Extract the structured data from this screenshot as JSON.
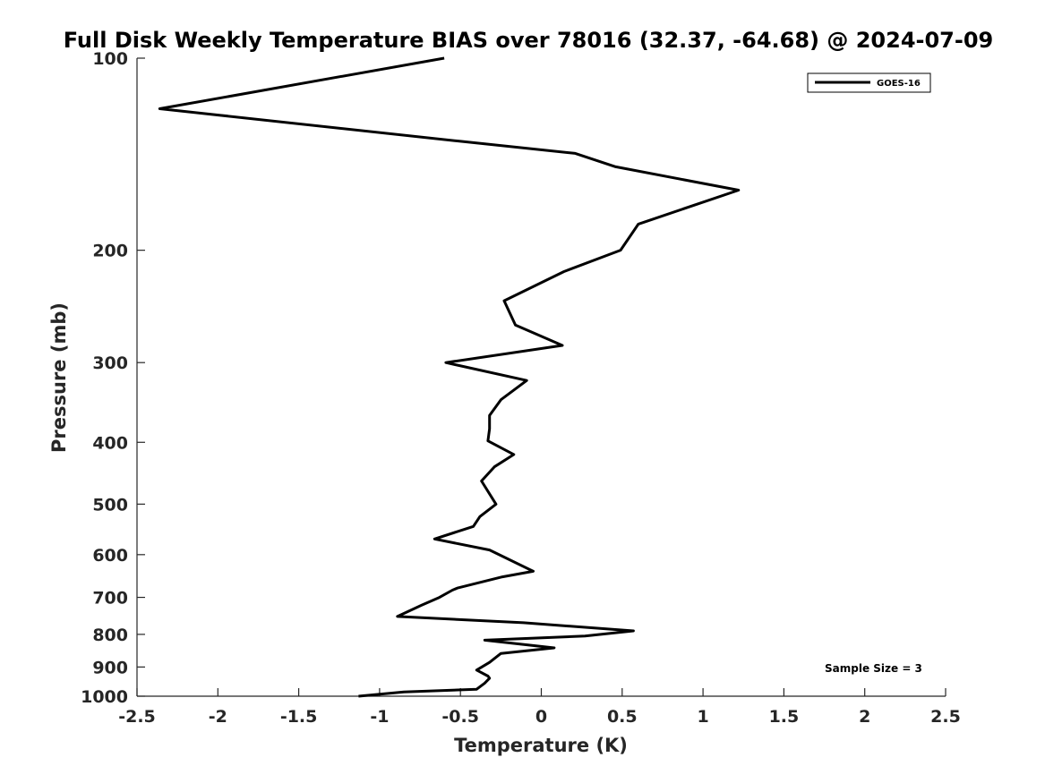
{
  "chart_data": {
    "type": "line",
    "title": "Full Disk Weekly Temperature BIAS over 78016 (32.37, -64.68) @ 2024-07-09",
    "xlabel": "Temperature (K)",
    "ylabel": "Pressure (mb)",
    "xlim": [
      -2.5,
      2.5
    ],
    "ylim": [
      100,
      1000
    ],
    "yscale": "log",
    "y_reversed": true,
    "grid": false,
    "x_ticks": [
      -2.5,
      -2,
      -1.5,
      -1,
      -0.5,
      0,
      0.5,
      1,
      1.5,
      2,
      2.5
    ],
    "x_tick_labels": [
      "-2.5",
      "-2",
      "-1.5",
      "-1",
      "-0.5",
      "0",
      "0.5",
      "1",
      "1.5",
      "2",
      "2.5"
    ],
    "y_ticks": [
      100,
      200,
      300,
      400,
      500,
      600,
      700,
      800,
      900,
      1000
    ],
    "y_tick_labels": [
      "100",
      "200",
      "300",
      "400",
      "500",
      "600",
      "700",
      "800",
      "900",
      "1000"
    ],
    "legend": {
      "placement": "top-right",
      "entries": [
        "GOES-16"
      ]
    },
    "annotation": "Sample Size = 3",
    "series": [
      {
        "name": "GOES-16",
        "color": "#000000",
        "points": [
          {
            "x": -0.6,
            "p": 100
          },
          {
            "x": -2.36,
            "p": 120
          },
          {
            "x": -0.5,
            "p": 135
          },
          {
            "x": 0.21,
            "p": 141
          },
          {
            "x": 0.46,
            "p": 148
          },
          {
            "x": 1.22,
            "p": 161
          },
          {
            "x": 0.6,
            "p": 182
          },
          {
            "x": 0.49,
            "p": 200
          },
          {
            "x": 0.14,
            "p": 216
          },
          {
            "x": -0.23,
            "p": 240
          },
          {
            "x": -0.16,
            "p": 262
          },
          {
            "x": 0.13,
            "p": 282
          },
          {
            "x": -0.59,
            "p": 300
          },
          {
            "x": -0.09,
            "p": 320
          },
          {
            "x": -0.25,
            "p": 343
          },
          {
            "x": -0.32,
            "p": 363
          },
          {
            "x": -0.32,
            "p": 381
          },
          {
            "x": -0.33,
            "p": 398
          },
          {
            "x": -0.17,
            "p": 418
          },
          {
            "x": -0.29,
            "p": 437
          },
          {
            "x": -0.37,
            "p": 460
          },
          {
            "x": -0.28,
            "p": 500
          },
          {
            "x": -0.38,
            "p": 523
          },
          {
            "x": -0.42,
            "p": 542
          },
          {
            "x": -0.66,
            "p": 567
          },
          {
            "x": -0.32,
            "p": 590
          },
          {
            "x": -0.05,
            "p": 637
          },
          {
            "x": -0.24,
            "p": 650
          },
          {
            "x": -0.52,
            "p": 677
          },
          {
            "x": -0.55,
            "p": 682
          },
          {
            "x": -0.63,
            "p": 700
          },
          {
            "x": -0.74,
            "p": 720
          },
          {
            "x": -0.89,
            "p": 750
          },
          {
            "x": -0.11,
            "p": 767
          },
          {
            "x": 0.57,
            "p": 790
          },
          {
            "x": 0.27,
            "p": 805
          },
          {
            "x": -0.35,
            "p": 817
          },
          {
            "x": 0.08,
            "p": 840
          },
          {
            "x": -0.25,
            "p": 857
          },
          {
            "x": -0.32,
            "p": 885
          },
          {
            "x": -0.4,
            "p": 910
          },
          {
            "x": -0.33,
            "p": 930
          },
          {
            "x": -0.32,
            "p": 937
          },
          {
            "x": -0.35,
            "p": 954
          },
          {
            "x": -0.4,
            "p": 975
          },
          {
            "x": -0.85,
            "p": 985
          },
          {
            "x": -1.13,
            "p": 1000
          }
        ]
      }
    ]
  }
}
